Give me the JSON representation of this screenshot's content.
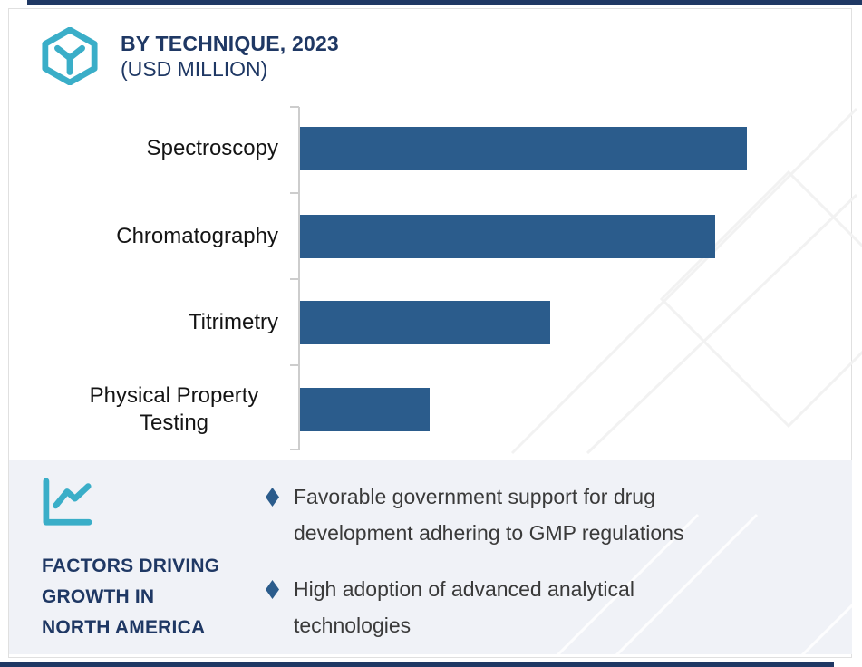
{
  "header": {
    "logo": "hexagon-y-logo",
    "title_line1": "BY TECHNIQUE, 2023",
    "title_line2": "(USD MILLION)"
  },
  "chart_data": {
    "type": "bar",
    "orientation": "horizontal",
    "title": "BY TECHNIQUE, 2023 (USD MILLION)",
    "categories": [
      "Spectroscopy",
      "Chromatography",
      "Titrimetry",
      "Physical Property Testing"
    ],
    "values_pct_of_max": [
      100,
      93,
      56,
      29
    ],
    "value_axis_shown": false,
    "data_labels_shown": false,
    "gridlines": false,
    "bar_color": "#2B5C8C",
    "note": "No numeric axis or data labels are rendered; values are estimated from bar lengths relative to the longest bar (Spectroscopy = 100)."
  },
  "factors": {
    "icon": "line-chart-icon",
    "heading_lines": [
      "FACTORS DRIVING",
      "GROWTH IN",
      "NORTH AMERICA"
    ],
    "bullets": [
      {
        "lines": [
          "Favorable government support for drug",
          "development adhering to GMP regulations"
        ]
      },
      {
        "lines": [
          "High adoption of advanced analytical",
          "technologies"
        ]
      }
    ]
  },
  "colors": {
    "navy": "#1F3864",
    "teal": "#3AAEC8",
    "bar_blue": "#2B5C8C",
    "panel_bg": "#F0F2F7",
    "body_text": "#3A3A3A",
    "axis_gray": "#CDCDCD",
    "watermark": "#F2F2F2"
  }
}
